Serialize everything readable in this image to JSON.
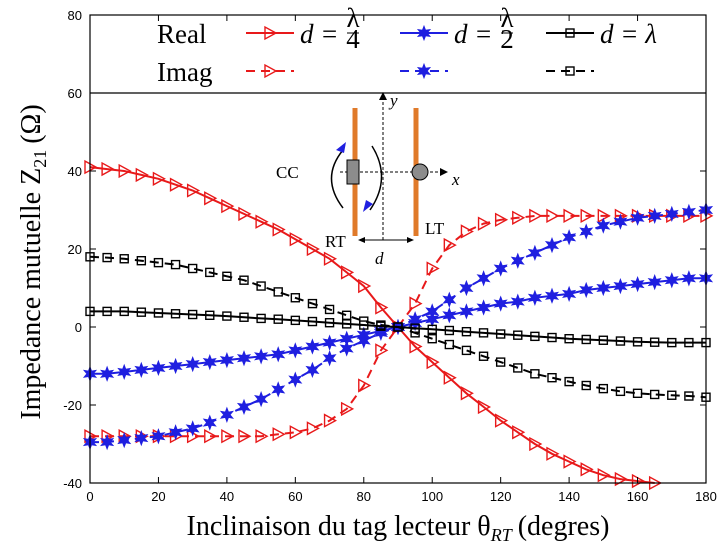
{
  "chart_data": {
    "type": "line",
    "xlabel": "Inclinaison du tag lecteur θ",
    "xlabel_sub": "RT",
    "xlabel_unit": "(degres)",
    "ylabel": "Impedance mutuelle Z",
    "ylabel_sub": "21",
    "ylabel_unit": "(Ω)",
    "xlim": [
      0,
      180
    ],
    "ylim": [
      -40,
      80
    ],
    "xticks": [
      0,
      20,
      40,
      60,
      80,
      100,
      120,
      140,
      160,
      180
    ],
    "yticks": [
      -40,
      -20,
      0,
      20,
      40,
      60,
      80
    ],
    "grid": false,
    "legend": {
      "row_labels": [
        "Real",
        "Imag"
      ],
      "entries": [
        {
          "label": "d = λ/4",
          "color": "#e8191a",
          "marker": "triangle-right"
        },
        {
          "label": "d = λ/2",
          "color": "#1f1fe0",
          "marker": "star"
        },
        {
          "label": "d = λ",
          "color": "#000000",
          "marker": "square"
        }
      ]
    },
    "series": [
      {
        "name": "Real d=λ/4",
        "part": "Real",
        "color": "#e8191a",
        "marker": "triangle-right",
        "dash": "solid",
        "x": [
          0,
          5,
          10,
          15,
          20,
          25,
          30,
          35,
          40,
          45,
          50,
          55,
          60,
          65,
          70,
          75,
          80,
          85,
          90,
          95,
          100,
          105,
          110,
          115,
          120,
          125,
          130,
          135,
          140,
          145,
          150,
          155,
          160,
          165
        ],
        "y": [
          41,
          40.5,
          40,
          39,
          38,
          36.5,
          35,
          33,
          31,
          29,
          27,
          25,
          22.5,
          20,
          17.5,
          14,
          10.5,
          5,
          0,
          -5,
          -9,
          -13,
          -17,
          -20.5,
          -24,
          -27,
          -30,
          -32.5,
          -34.5,
          -36.5,
          -38,
          -39,
          -39.5,
          -40
        ]
      },
      {
        "name": "Imag d=λ/4",
        "part": "Imag",
        "color": "#e8191a",
        "marker": "triangle-right",
        "dash": "dashed",
        "x": [
          0,
          5,
          10,
          15,
          20,
          25,
          30,
          35,
          40,
          45,
          50,
          55,
          60,
          65,
          70,
          75,
          80,
          85,
          90,
          95,
          100,
          105,
          110,
          115,
          120,
          125,
          130,
          135,
          140,
          145,
          150,
          155,
          160,
          165,
          170,
          175,
          180
        ],
        "y": [
          -28,
          -28,
          -28,
          -28,
          -28,
          -28,
          -28,
          -28,
          -28,
          -28,
          -28,
          -27.5,
          -27,
          -26,
          -24,
          -21,
          -15,
          -6,
          0,
          6,
          15,
          21,
          24.5,
          26.5,
          27.5,
          28,
          28.5,
          28.5,
          28.5,
          28.5,
          28.5,
          28.5,
          28.5,
          28.5,
          28.5,
          28.5,
          28.5
        ]
      },
      {
        "name": "Real d=λ/2",
        "part": "Real",
        "color": "#1f1fe0",
        "marker": "star",
        "dash": "solid",
        "x": [
          0,
          5,
          10,
          15,
          20,
          25,
          30,
          35,
          40,
          45,
          50,
          55,
          60,
          65,
          70,
          75,
          80,
          85,
          90,
          95,
          100,
          105,
          110,
          115,
          120,
          125,
          130,
          135,
          140,
          145,
          150,
          155,
          160,
          165,
          170,
          175,
          180
        ],
        "y": [
          -12,
          -12,
          -11.5,
          -11,
          -10.5,
          -10,
          -9.5,
          -9,
          -8.5,
          -8,
          -7.5,
          -7,
          -6,
          -5,
          -4,
          -3,
          -2,
          -1,
          0,
          1,
          2,
          3,
          4,
          5,
          6,
          6.5,
          7.5,
          8,
          8.5,
          9.5,
          10,
          10.5,
          11,
          11.5,
          12,
          12.5,
          12.5
        ]
      },
      {
        "name": "Imag d=λ/2",
        "part": "Imag",
        "color": "#1f1fe0",
        "marker": "star",
        "dash": "dashed",
        "x": [
          0,
          5,
          10,
          15,
          20,
          25,
          30,
          35,
          40,
          45,
          50,
          55,
          60,
          65,
          70,
          75,
          80,
          85,
          90,
          95,
          100,
          105,
          110,
          115,
          120,
          125,
          130,
          135,
          140,
          145,
          150,
          155,
          160,
          165,
          170,
          175,
          180
        ],
        "y": [
          -29.5,
          -29.5,
          -29,
          -28.5,
          -28,
          -27,
          -26,
          -24.5,
          -22.5,
          -20.5,
          -18.5,
          -16,
          -13.5,
          -11,
          -8,
          -5.5,
          -3.5,
          -1.5,
          0,
          2,
          4,
          7,
          10,
          12.5,
          15,
          17,
          19,
          21,
          23,
          24.5,
          26,
          27,
          28,
          28.5,
          29,
          29.5,
          30
        ]
      },
      {
        "name": "Real d=λ",
        "part": "Real",
        "color": "#000000",
        "marker": "square",
        "dash": "solid",
        "x": [
          0,
          5,
          10,
          15,
          20,
          25,
          30,
          35,
          40,
          45,
          50,
          55,
          60,
          65,
          70,
          75,
          80,
          85,
          90,
          95,
          100,
          105,
          110,
          115,
          120,
          125,
          130,
          135,
          140,
          145,
          150,
          155,
          160,
          165,
          170,
          175,
          180
        ],
        "y": [
          4,
          4,
          4,
          3.8,
          3.6,
          3.4,
          3.2,
          3,
          2.8,
          2.5,
          2.2,
          2,
          1.7,
          1.4,
          1.1,
          0.8,
          0.5,
          0.2,
          0,
          -0.3,
          -0.6,
          -0.9,
          -1.2,
          -1.5,
          -1.8,
          -2.1,
          -2.4,
          -2.7,
          -3,
          -3.2,
          -3.4,
          -3.6,
          -3.8,
          -3.9,
          -4,
          -4,
          -4
        ]
      },
      {
        "name": "Imag d=λ",
        "part": "Imag",
        "color": "#000000",
        "marker": "square",
        "dash": "dashed",
        "x": [
          0,
          5,
          10,
          15,
          20,
          25,
          30,
          35,
          40,
          45,
          50,
          55,
          60,
          65,
          70,
          75,
          80,
          85,
          90,
          95,
          100,
          105,
          110,
          115,
          120,
          125,
          130,
          135,
          140,
          145,
          150,
          155,
          160,
          165,
          170,
          175,
          180
        ],
        "y": [
          18,
          17.8,
          17.5,
          17,
          16.5,
          16,
          15,
          14,
          13,
          12,
          10.5,
          9,
          7.5,
          6,
          4.5,
          3,
          1.5,
          0.5,
          0,
          -1.5,
          -3,
          -4.5,
          -6,
          -7.5,
          -9,
          -10.5,
          -12,
          -13,
          -14,
          -15,
          -15.8,
          -16.5,
          -17,
          -17.3,
          -17.5,
          -17.7,
          -18
        ]
      }
    ],
    "inset": {
      "labels": {
        "cc": "CC",
        "rt": "RT",
        "lt": "LT",
        "d": "d",
        "x": "x",
        "y": "y"
      },
      "colors": {
        "dipole": "#e07a2a",
        "arrow": "#1f1fe0"
      }
    }
  }
}
